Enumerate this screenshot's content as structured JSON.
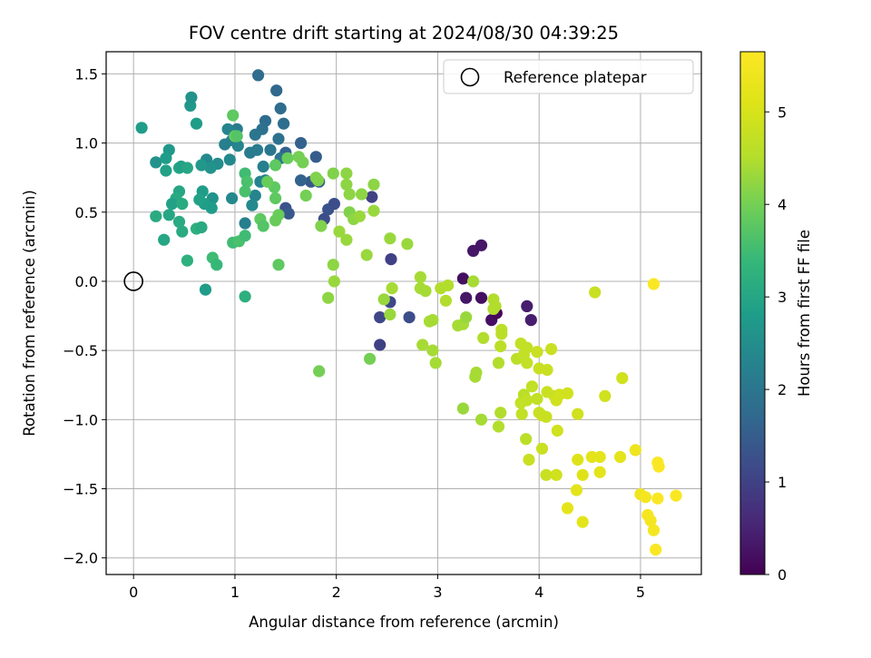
{
  "chart_data": {
    "type": "scatter",
    "title": "FOV centre drift starting at 2024/08/30 04:39:25",
    "xlabel": "Angular distance from reference (arcmin)",
    "ylabel": "Rotation from reference (arcmin)",
    "xlim": [
      -0.27,
      5.6
    ],
    "ylim": [
      -2.12,
      1.66
    ],
    "xticks": [
      0,
      1,
      2,
      3,
      4,
      5
    ],
    "xtick_labels": [
      "0",
      "1",
      "2",
      "3",
      "4",
      "5"
    ],
    "yticks": [
      -2.0,
      -1.5,
      -1.0,
      -0.5,
      0.0,
      0.5,
      1.0,
      1.5
    ],
    "ytick_labels": [
      "−2.0",
      "−1.5",
      "−1.0",
      "−0.5",
      "0.0",
      "0.5",
      "1.0",
      "1.5"
    ],
    "grid": true,
    "legend": {
      "placement": "top-right",
      "entries": [
        "Reference platepar"
      ]
    },
    "colorbar": {
      "label": "Hours from first FF file",
      "range": [
        0,
        5.65
      ],
      "ticks": [
        0,
        1,
        2,
        3,
        4,
        5
      ],
      "tick_labels": [
        "0",
        "1",
        "2",
        "3",
        "4",
        "5"
      ],
      "colormap": "viridis"
    },
    "reference_point": {
      "x": 0.0,
      "y": 0.0,
      "name": "Reference platepar"
    },
    "points": [
      {
        "x": 3.35,
        "y": 0.22,
        "h": 0.3
      },
      {
        "x": 3.43,
        "y": 0.26,
        "h": 0.3
      },
      {
        "x": 3.25,
        "y": 0.02,
        "h": 0.2
      },
      {
        "x": 3.28,
        "y": -0.12,
        "h": 0.3
      },
      {
        "x": 3.43,
        "y": -0.12,
        "h": 0.2
      },
      {
        "x": 3.53,
        "y": -0.28,
        "h": 0.2
      },
      {
        "x": 3.58,
        "y": -0.23,
        "h": 0.1
      },
      {
        "x": 3.88,
        "y": -0.18,
        "h": 0.4
      },
      {
        "x": 3.92,
        "y": -0.28,
        "h": 0.4
      },
      {
        "x": 2.35,
        "y": 0.61,
        "h": 1.0
      },
      {
        "x": 2.54,
        "y": 0.16,
        "h": 1.0
      },
      {
        "x": 2.53,
        "y": -0.15,
        "h": 1.1
      },
      {
        "x": 2.43,
        "y": -0.26,
        "h": 1.1
      },
      {
        "x": 2.43,
        "y": -0.46,
        "h": 1.0
      },
      {
        "x": 2.72,
        "y": -0.26,
        "h": 1.2
      },
      {
        "x": 1.92,
        "y": 0.52,
        "h": 1.3
      },
      {
        "x": 1.98,
        "y": 0.56,
        "h": 1.2
      },
      {
        "x": 1.88,
        "y": 0.45,
        "h": 1.2
      },
      {
        "x": 1.5,
        "y": 0.53,
        "h": 1.3
      },
      {
        "x": 1.53,
        "y": 0.49,
        "h": 1.4
      },
      {
        "x": 1.75,
        "y": 0.72,
        "h": 1.4
      },
      {
        "x": 1.8,
        "y": 0.9,
        "h": 1.5
      },
      {
        "x": 1.83,
        "y": 0.72,
        "h": 1.5
      },
      {
        "x": 1.65,
        "y": 0.73,
        "h": 1.6
      },
      {
        "x": 1.65,
        "y": 1.0,
        "h": 1.6
      },
      {
        "x": 1.5,
        "y": 0.93,
        "h": 1.6
      },
      {
        "x": 1.23,
        "y": 1.49,
        "h": 1.8
      },
      {
        "x": 1.41,
        "y": 1.38,
        "h": 1.7
      },
      {
        "x": 1.45,
        "y": 1.25,
        "h": 1.8
      },
      {
        "x": 1.48,
        "y": 1.14,
        "h": 1.8
      },
      {
        "x": 1.3,
        "y": 1.16,
        "h": 1.8
      },
      {
        "x": 1.27,
        "y": 1.1,
        "h": 1.9
      },
      {
        "x": 1.43,
        "y": 1.03,
        "h": 1.9
      },
      {
        "x": 1.35,
        "y": 0.95,
        "h": 2.0
      },
      {
        "x": 1.45,
        "y": 0.89,
        "h": 2.0
      },
      {
        "x": 1.2,
        "y": 1.06,
        "h": 2.0
      },
      {
        "x": 1.22,
        "y": 0.95,
        "h": 2.1
      },
      {
        "x": 1.15,
        "y": 0.93,
        "h": 2.1
      },
      {
        "x": 1.28,
        "y": 0.83,
        "h": 2.2
      },
      {
        "x": 1.3,
        "y": 0.73,
        "h": 2.2
      },
      {
        "x": 1.25,
        "y": 0.72,
        "h": 2.3
      },
      {
        "x": 1.2,
        "y": 0.62,
        "h": 2.3
      },
      {
        "x": 1.17,
        "y": 0.55,
        "h": 2.4
      },
      {
        "x": 1.1,
        "y": 0.42,
        "h": 2.2
      },
      {
        "x": 1.02,
        "y": 1.1,
        "h": 2.1
      },
      {
        "x": 0.97,
        "y": 1.02,
        "h": 2.2
      },
      {
        "x": 0.93,
        "y": 1.1,
        "h": 2.3
      },
      {
        "x": 1.03,
        "y": 0.98,
        "h": 2.3
      },
      {
        "x": 0.9,
        "y": 0.99,
        "h": 2.2
      },
      {
        "x": 0.95,
        "y": 0.88,
        "h": 2.4
      },
      {
        "x": 0.83,
        "y": 0.85,
        "h": 2.5
      },
      {
        "x": 0.72,
        "y": 0.88,
        "h": 2.4
      },
      {
        "x": 0.76,
        "y": 0.82,
        "h": 2.6
      },
      {
        "x": 0.67,
        "y": 0.84,
        "h": 2.7
      },
      {
        "x": 0.97,
        "y": 0.6,
        "h": 2.4
      },
      {
        "x": 0.78,
        "y": 0.6,
        "h": 2.6
      },
      {
        "x": 0.77,
        "y": 0.53,
        "h": 2.8
      },
      {
        "x": 0.7,
        "y": 0.56,
        "h": 2.8
      },
      {
        "x": 0.68,
        "y": 0.65,
        "h": 2.8
      },
      {
        "x": 0.65,
        "y": 0.59,
        "h": 2.9
      },
      {
        "x": 0.56,
        "y": 1.27,
        "h": 2.7
      },
      {
        "x": 0.57,
        "y": 1.33,
        "h": 2.6
      },
      {
        "x": 0.62,
        "y": 1.14,
        "h": 2.8
      },
      {
        "x": 0.08,
        "y": 1.11,
        "h": 2.8
      },
      {
        "x": 0.22,
        "y": 0.86,
        "h": 2.6
      },
      {
        "x": 0.35,
        "y": 0.95,
        "h": 2.7
      },
      {
        "x": 0.32,
        "y": 0.89,
        "h": 2.8
      },
      {
        "x": 0.32,
        "y": 0.8,
        "h": 2.9
      },
      {
        "x": 0.45,
        "y": 0.82,
        "h": 3.0
      },
      {
        "x": 0.47,
        "y": 0.83,
        "h": 2.9
      },
      {
        "x": 0.53,
        "y": 0.82,
        "h": 3.0
      },
      {
        "x": 0.45,
        "y": 0.65,
        "h": 3.0
      },
      {
        "x": 0.42,
        "y": 0.6,
        "h": 3.1
      },
      {
        "x": 0.38,
        "y": 0.56,
        "h": 2.9
      },
      {
        "x": 0.48,
        "y": 0.56,
        "h": 3.1
      },
      {
        "x": 0.35,
        "y": 0.48,
        "h": 3.0
      },
      {
        "x": 0.22,
        "y": 0.47,
        "h": 3.1
      },
      {
        "x": 0.45,
        "y": 0.43,
        "h": 3.1
      },
      {
        "x": 0.48,
        "y": 0.36,
        "h": 3.1
      },
      {
        "x": 0.3,
        "y": 0.3,
        "h": 3.0
      },
      {
        "x": 0.62,
        "y": 0.38,
        "h": 3.2
      },
      {
        "x": 0.67,
        "y": 0.39,
        "h": 3.1
      },
      {
        "x": 0.53,
        "y": 0.15,
        "h": 3.2
      },
      {
        "x": 0.71,
        "y": -0.06,
        "h": 2.8
      },
      {
        "x": 1.1,
        "y": -0.11,
        "h": 3.2
      },
      {
        "x": 0.78,
        "y": 0.17,
        "h": 3.5
      },
      {
        "x": 0.82,
        "y": 0.12,
        "h": 3.4
      },
      {
        "x": 0.98,
        "y": 0.28,
        "h": 3.5
      },
      {
        "x": 1.04,
        "y": 0.29,
        "h": 3.6
      },
      {
        "x": 1.1,
        "y": 0.33,
        "h": 3.5
      },
      {
        "x": 1.43,
        "y": 0.12,
        "h": 3.8
      },
      {
        "x": 0.98,
        "y": 1.2,
        "h": 3.8
      },
      {
        "x": 1.0,
        "y": 1.05,
        "h": 3.9
      },
      {
        "x": 1.02,
        "y": 1.05,
        "h": 3.7
      },
      {
        "x": 1.1,
        "y": 0.78,
        "h": 3.5
      },
      {
        "x": 1.12,
        "y": 0.72,
        "h": 3.6
      },
      {
        "x": 1.1,
        "y": 0.65,
        "h": 3.6
      },
      {
        "x": 1.25,
        "y": 0.45,
        "h": 3.8
      },
      {
        "x": 1.28,
        "y": 0.4,
        "h": 3.7
      },
      {
        "x": 1.4,
        "y": 0.44,
        "h": 3.9
      },
      {
        "x": 1.43,
        "y": 0.48,
        "h": 3.9
      },
      {
        "x": 1.4,
        "y": 0.6,
        "h": 3.8
      },
      {
        "x": 1.39,
        "y": 0.68,
        "h": 3.8
      },
      {
        "x": 1.32,
        "y": 0.72,
        "h": 3.9
      },
      {
        "x": 1.4,
        "y": 0.84,
        "h": 3.8
      },
      {
        "x": 1.52,
        "y": 0.89,
        "h": 3.9
      },
      {
        "x": 1.63,
        "y": 0.9,
        "h": 4.0
      },
      {
        "x": 1.67,
        "y": 0.86,
        "h": 4.0
      },
      {
        "x": 1.7,
        "y": 0.62,
        "h": 4.0
      },
      {
        "x": 1.8,
        "y": 0.75,
        "h": 4.1
      },
      {
        "x": 1.82,
        "y": 0.73,
        "h": 4.1
      },
      {
        "x": 1.85,
        "y": 0.4,
        "h": 4.1
      },
      {
        "x": 1.97,
        "y": 0.78,
        "h": 4.1
      },
      {
        "x": 2.1,
        "y": 0.78,
        "h": 4.2
      },
      {
        "x": 2.1,
        "y": 0.7,
        "h": 4.2
      },
      {
        "x": 2.13,
        "y": 0.63,
        "h": 4.2
      },
      {
        "x": 2.25,
        "y": 0.63,
        "h": 4.2
      },
      {
        "x": 2.37,
        "y": 0.7,
        "h": 4.2
      },
      {
        "x": 2.13,
        "y": 0.5,
        "h": 4.1
      },
      {
        "x": 2.17,
        "y": 0.45,
        "h": 4.2
      },
      {
        "x": 2.23,
        "y": 0.47,
        "h": 4.3
      },
      {
        "x": 2.37,
        "y": 0.51,
        "h": 4.3
      },
      {
        "x": 2.03,
        "y": 0.36,
        "h": 4.3
      },
      {
        "x": 2.1,
        "y": 0.3,
        "h": 4.3
      },
      {
        "x": 2.3,
        "y": 0.19,
        "h": 4.3
      },
      {
        "x": 2.53,
        "y": 0.31,
        "h": 4.3
      },
      {
        "x": 2.7,
        "y": 0.27,
        "h": 4.3
      },
      {
        "x": 1.97,
        "y": 0.12,
        "h": 4.2
      },
      {
        "x": 1.98,
        "y": 0.0,
        "h": 4.3
      },
      {
        "x": 1.92,
        "y": -0.12,
        "h": 4.2
      },
      {
        "x": 1.83,
        "y": -0.65,
        "h": 4.0
      },
      {
        "x": 2.33,
        "y": -0.56,
        "h": 4.0
      },
      {
        "x": 2.55,
        "y": -0.05,
        "h": 4.4
      },
      {
        "x": 2.47,
        "y": -0.13,
        "h": 4.3
      },
      {
        "x": 2.53,
        "y": -0.24,
        "h": 4.3
      },
      {
        "x": 2.83,
        "y": 0.03,
        "h": 4.4
      },
      {
        "x": 2.83,
        "y": -0.05,
        "h": 4.4
      },
      {
        "x": 2.88,
        "y": -0.07,
        "h": 4.4
      },
      {
        "x": 2.85,
        "y": -0.46,
        "h": 4.4
      },
      {
        "x": 2.92,
        "y": -0.29,
        "h": 4.4
      },
      {
        "x": 2.95,
        "y": -0.28,
        "h": 4.4
      },
      {
        "x": 2.95,
        "y": -0.5,
        "h": 4.4
      },
      {
        "x": 2.98,
        "y": -0.59,
        "h": 4.4
      },
      {
        "x": 3.03,
        "y": -0.05,
        "h": 4.5
      },
      {
        "x": 3.08,
        "y": -0.14,
        "h": 4.5
      },
      {
        "x": 3.1,
        "y": -0.03,
        "h": 4.5
      },
      {
        "x": 3.2,
        "y": -0.32,
        "h": 4.4
      },
      {
        "x": 3.25,
        "y": -0.31,
        "h": 4.4
      },
      {
        "x": 3.28,
        "y": -0.26,
        "h": 4.3
      },
      {
        "x": 3.25,
        "y": -0.92,
        "h": 4.3
      },
      {
        "x": 3.35,
        "y": 0.0,
        "h": 4.4
      },
      {
        "x": 3.38,
        "y": -0.66,
        "h": 4.4
      },
      {
        "x": 3.37,
        "y": -0.69,
        "h": 4.4
      },
      {
        "x": 3.43,
        "y": -1.0,
        "h": 4.4
      },
      {
        "x": 3.45,
        "y": -0.41,
        "h": 4.5
      },
      {
        "x": 3.55,
        "y": -0.13,
        "h": 4.5
      },
      {
        "x": 3.55,
        "y": -0.2,
        "h": 4.5
      },
      {
        "x": 3.57,
        "y": -0.18,
        "h": 4.5
      },
      {
        "x": 3.6,
        "y": -0.59,
        "h": 4.5
      },
      {
        "x": 3.63,
        "y": -0.35,
        "h": 4.6
      },
      {
        "x": 3.63,
        "y": -0.38,
        "h": 4.6
      },
      {
        "x": 3.62,
        "y": -0.47,
        "h": 4.6
      },
      {
        "x": 3.62,
        "y": -0.95,
        "h": 4.5
      },
      {
        "x": 3.6,
        "y": -1.05,
        "h": 4.5
      },
      {
        "x": 3.78,
        "y": -0.56,
        "h": 4.6
      },
      {
        "x": 3.82,
        "y": -0.45,
        "h": 4.7
      },
      {
        "x": 3.88,
        "y": -0.48,
        "h": 4.7
      },
      {
        "x": 3.85,
        "y": -0.53,
        "h": 4.7
      },
      {
        "x": 3.88,
        "y": -0.59,
        "h": 4.7
      },
      {
        "x": 3.82,
        "y": -0.88,
        "h": 4.7
      },
      {
        "x": 3.85,
        "y": -0.82,
        "h": 4.6
      },
      {
        "x": 3.88,
        "y": -0.86,
        "h": 4.7
      },
      {
        "x": 3.83,
        "y": -0.96,
        "h": 4.7
      },
      {
        "x": 3.93,
        "y": -0.76,
        "h": 4.7
      },
      {
        "x": 3.87,
        "y": -1.14,
        "h": 4.6
      },
      {
        "x": 3.9,
        "y": -1.29,
        "h": 4.8
      },
      {
        "x": 3.98,
        "y": -0.51,
        "h": 4.8
      },
      {
        "x": 4.0,
        "y": -0.63,
        "h": 4.8
      },
      {
        "x": 3.98,
        "y": -0.85,
        "h": 4.7
      },
      {
        "x": 4.0,
        "y": -0.95,
        "h": 4.8
      },
      {
        "x": 4.03,
        "y": -0.97,
        "h": 4.8
      },
      {
        "x": 4.07,
        "y": -0.98,
        "h": 4.8
      },
      {
        "x": 4.08,
        "y": -0.64,
        "h": 4.8
      },
      {
        "x": 4.08,
        "y": -0.8,
        "h": 4.8
      },
      {
        "x": 4.03,
        "y": -1.21,
        "h": 4.8
      },
      {
        "x": 4.07,
        "y": -1.4,
        "h": 4.8
      },
      {
        "x": 4.12,
        "y": -0.49,
        "h": 4.8
      },
      {
        "x": 4.15,
        "y": -0.83,
        "h": 4.8
      },
      {
        "x": 4.17,
        "y": -0.86,
        "h": 4.9
      },
      {
        "x": 4.2,
        "y": -0.82,
        "h": 4.9
      },
      {
        "x": 4.18,
        "y": -1.08,
        "h": 4.9
      },
      {
        "x": 4.17,
        "y": -1.4,
        "h": 4.9
      },
      {
        "x": 4.28,
        "y": -0.81,
        "h": 4.9
      },
      {
        "x": 4.38,
        "y": -0.96,
        "h": 4.9
      },
      {
        "x": 4.55,
        "y": -0.08,
        "h": 4.8
      },
      {
        "x": 4.65,
        "y": -0.83,
        "h": 4.9
      },
      {
        "x": 4.82,
        "y": -0.7,
        "h": 4.9
      },
      {
        "x": 4.28,
        "y": -1.64,
        "h": 5.2
      },
      {
        "x": 4.37,
        "y": -1.51,
        "h": 5.2
      },
      {
        "x": 4.38,
        "y": -1.29,
        "h": 5.1
      },
      {
        "x": 4.43,
        "y": -1.4,
        "h": 5.1
      },
      {
        "x": 4.43,
        "y": -1.74,
        "h": 5.2
      },
      {
        "x": 4.52,
        "y": -1.27,
        "h": 5.2
      },
      {
        "x": 4.6,
        "y": -1.27,
        "h": 5.2
      },
      {
        "x": 4.6,
        "y": -1.38,
        "h": 5.2
      },
      {
        "x": 4.8,
        "y": -1.27,
        "h": 5.2
      },
      {
        "x": 4.95,
        "y": -1.22,
        "h": 5.4
      },
      {
        "x": 5.0,
        "y": -1.54,
        "h": 5.4
      },
      {
        "x": 5.05,
        "y": -1.56,
        "h": 5.5
      },
      {
        "x": 5.07,
        "y": -1.69,
        "h": 5.5
      },
      {
        "x": 5.1,
        "y": -1.73,
        "h": 5.5
      },
      {
        "x": 5.13,
        "y": -1.8,
        "h": 5.5
      },
      {
        "x": 5.15,
        "y": -1.94,
        "h": 5.6
      },
      {
        "x": 5.17,
        "y": -1.31,
        "h": 5.6
      },
      {
        "x": 5.18,
        "y": -1.34,
        "h": 5.6
      },
      {
        "x": 5.17,
        "y": -1.57,
        "h": 5.6
      },
      {
        "x": 5.35,
        "y": -1.55,
        "h": 5.6
      },
      {
        "x": 5.13,
        "y": -0.02,
        "h": 5.6
      }
    ]
  }
}
